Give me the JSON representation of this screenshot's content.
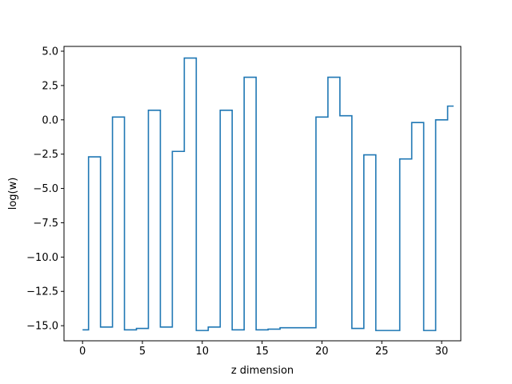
{
  "chart_data": {
    "type": "line",
    "drawstyle": "steps-mid",
    "title": "",
    "xlabel": "z dimension",
    "ylabel": "log(w)",
    "xlim": [
      -1.55,
      31.6
    ],
    "ylim": [
      -16.1,
      5.35
    ],
    "xticks": [
      0,
      5,
      10,
      15,
      20,
      25,
      30
    ],
    "xtick_labels": [
      "0",
      "5",
      "10",
      "15",
      "20",
      "25",
      "30"
    ],
    "yticks": [
      5.0,
      2.5,
      0.0,
      -2.5,
      -5.0,
      -7.5,
      -10.0,
      -12.5,
      -15.0
    ],
    "ytick_labels": [
      "5.0",
      "2.5",
      "0.0",
      "−2.5",
      "−5.0",
      "−7.5",
      "−10.0",
      "−12.5",
      "−15.0"
    ],
    "grid": false,
    "series": [
      {
        "color": "#1f77b4",
        "x": [
          0,
          1,
          2,
          3,
          4,
          5,
          6,
          7,
          8,
          9,
          10,
          11,
          12,
          13,
          14,
          15,
          16,
          17,
          18,
          19,
          20,
          21,
          22,
          23,
          24,
          25,
          26,
          27,
          28,
          29,
          30,
          31
        ],
        "values": [
          -15.3,
          -2.7,
          -15.1,
          0.2,
          -15.3,
          -15.2,
          0.7,
          -15.1,
          -2.3,
          4.5,
          -15.35,
          -15.1,
          0.7,
          -15.3,
          3.1,
          -15.3,
          -15.25,
          -15.15,
          -15.15,
          -15.15,
          0.2,
          3.1,
          0.3,
          -15.2,
          -2.55,
          -15.35,
          -15.35,
          -2.85,
          -0.2,
          -15.35,
          0.0,
          1.0
        ]
      }
    ]
  }
}
